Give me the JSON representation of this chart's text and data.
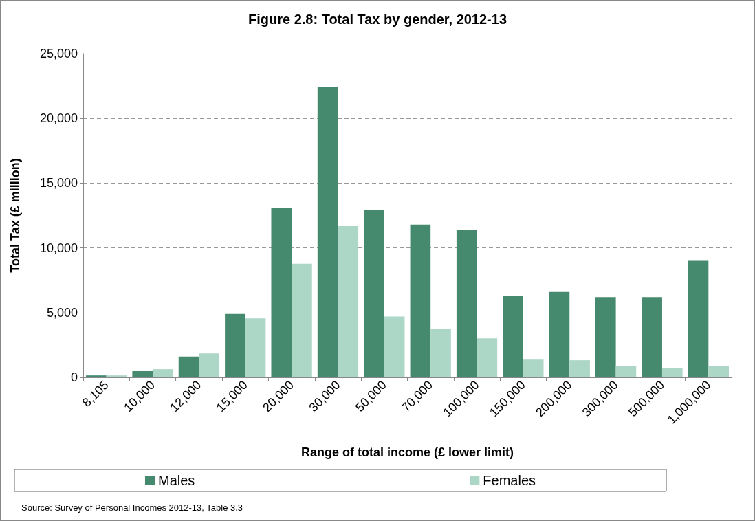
{
  "chart_data": {
    "type": "bar",
    "title": "Figure 2.8: Total Tax by gender, 2012-13",
    "xlabel": "Range of total income (£ lower limit)",
    "ylabel": "Total Tax (£ million)",
    "categories": [
      "8,105",
      "10,000",
      "12,000",
      "15,000",
      "20,000",
      "30,000",
      "50,000",
      "70,000",
      "100,000",
      "150,000",
      "200,000",
      "300,000",
      "500,000",
      "1,000,000"
    ],
    "series": [
      {
        "name": "Males",
        "color": "#458a6e",
        "values": [
          150,
          480,
          1600,
          4900,
          13100,
          22400,
          12900,
          11800,
          11400,
          6300,
          6600,
          6200,
          6200,
          9000
        ]
      },
      {
        "name": "Females",
        "color": "#acd6c6",
        "values": [
          150,
          630,
          1850,
          4550,
          8770,
          11680,
          4700,
          3750,
          3010,
          1370,
          1320,
          850,
          740,
          850
        ]
      }
    ],
    "ylim": [
      0,
      25000
    ],
    "yticks": [
      0,
      {
        "value": 5000,
        "label": "5,000"
      },
      {
        "value": 10000,
        "label": "10,000"
      },
      {
        "value": 15000,
        "label": "15,000"
      },
      {
        "value": 20000,
        "label": "20,000"
      },
      {
        "value": 25000,
        "label": "25,000"
      }
    ],
    "grid": "y",
    "legend": "bottom",
    "annotations": [
      "Source: Survey of Personal Incomes 2012-13, Table 3.3"
    ]
  }
}
